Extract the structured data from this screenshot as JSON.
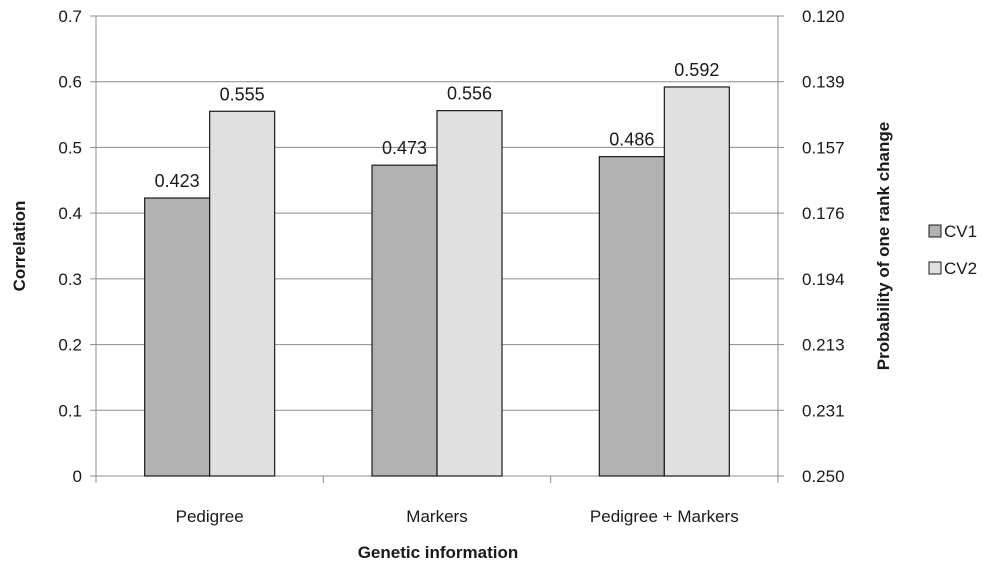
{
  "chart_data": {
    "type": "bar",
    "categories": [
      "Pedigree",
      "Markers",
      "Pedigree + Markers"
    ],
    "series": [
      {
        "name": "CV1",
        "values": [
          0.423,
          0.473,
          0.486
        ],
        "color": "#b2b2b2"
      },
      {
        "name": "CV2",
        "values": [
          0.555,
          0.556,
          0.592
        ],
        "color": "#e0e0e0"
      }
    ],
    "data_labels": [
      [
        "0.423",
        "0.473",
        "0.486"
      ],
      [
        "0.555",
        "0.556",
        "0.592"
      ]
    ],
    "xlabel": "Genetic information",
    "ylabel": "Correlation",
    "y2label": "Probability of one rank change",
    "ylim": [
      0,
      0.7
    ],
    "yticks": [
      "0",
      "0.1",
      "0.2",
      "0.3",
      "0.4",
      "0.5",
      "0.6",
      "0.7"
    ],
    "y2ticks": [
      "0.250",
      "0.231",
      "0.213",
      "0.194",
      "0.176",
      "0.157",
      "0.139",
      "0.120"
    ],
    "grid": true,
    "legend_position": "right",
    "colors": {
      "gridline": "#8c8c8c",
      "axis": "#8c8c8c",
      "bar_stroke": "#1a1a1a"
    }
  }
}
